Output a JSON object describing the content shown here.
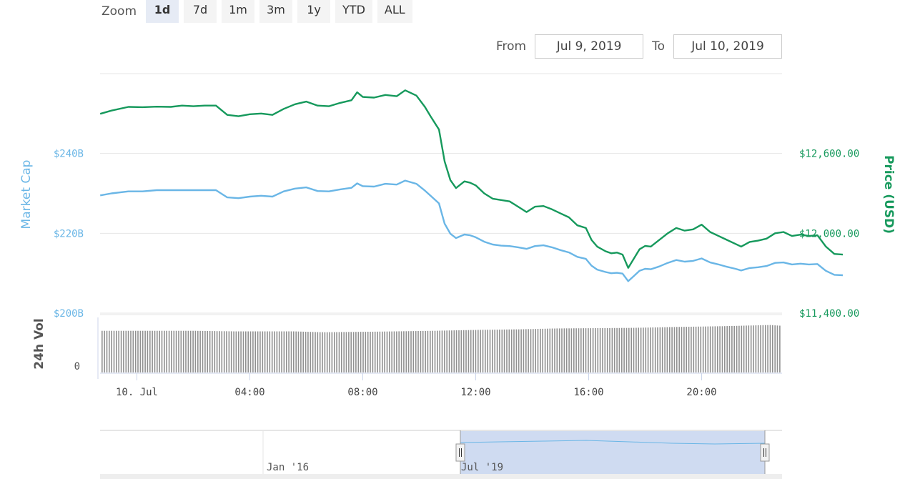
{
  "zoom": {
    "label": "Zoom",
    "buttons": [
      "1d",
      "7d",
      "1m",
      "3m",
      "1y",
      "YTD",
      "ALL"
    ],
    "active": "1d"
  },
  "range": {
    "from_label": "From",
    "from_value": "Jul 9, 2019",
    "to_label": "To",
    "to_value": "Jul 10, 2019"
  },
  "colors": {
    "market_cap": "#6ab6e6",
    "price": "#16995c",
    "volume": "#909090",
    "navigator_fill": "#c7d5ee",
    "grid": "#e6e6e6"
  },
  "chart_data": {
    "type": "line",
    "x_unit": "hours",
    "x_start": -1.3,
    "x_end": 22.8,
    "x_ticks": [
      {
        "x": 0,
        "label": "10. Jul"
      },
      {
        "x": 4,
        "label": "04:00"
      },
      {
        "x": 8,
        "label": "08:00"
      },
      {
        "x": 12,
        "label": "12:00"
      },
      {
        "x": 16,
        "label": "16:00"
      },
      {
        "x": 20,
        "label": "20:00"
      }
    ],
    "left_axis": {
      "label": "Market Cap",
      "ylim": [
        200,
        260
      ],
      "ticks": [
        {
          "v": 200,
          "label": "$200B"
        },
        {
          "v": 220,
          "label": "$220B"
        },
        {
          "v": 240,
          "label": "$240B"
        }
      ]
    },
    "right_axis": {
      "label": "Price (USD)",
      "ylim": [
        11400,
        13200
      ],
      "ticks": [
        {
          "v": 11400,
          "label": "$11,400.00"
        },
        {
          "v": 12000,
          "label": "$12,000.00"
        },
        {
          "v": 12600,
          "label": "$12,600.00"
        }
      ]
    },
    "volume_axis": {
      "label": "24h Vol",
      "ticks": [
        {
          "v": 0,
          "label": "0"
        }
      ]
    },
    "series": [
      {
        "name": "Price (USD)",
        "axis": "right",
        "points": [
          [
            -1.3,
            12898
          ],
          [
            -0.9,
            12922
          ],
          [
            -0.3,
            12950
          ],
          [
            0.2,
            12948
          ],
          [
            0.7,
            12952
          ],
          [
            1.2,
            12950
          ],
          [
            1.6,
            12960
          ],
          [
            2.0,
            12955
          ],
          [
            2.4,
            12960
          ],
          [
            2.8,
            12960
          ],
          [
            3.2,
            12890
          ],
          [
            3.6,
            12880
          ],
          [
            4.0,
            12895
          ],
          [
            4.4,
            12900
          ],
          [
            4.8,
            12890
          ],
          [
            5.2,
            12935
          ],
          [
            5.6,
            12970
          ],
          [
            6.0,
            12990
          ],
          [
            6.4,
            12960
          ],
          [
            6.8,
            12955
          ],
          [
            7.2,
            12980
          ],
          [
            7.6,
            13000
          ],
          [
            7.8,
            13060
          ],
          [
            8.0,
            13025
          ],
          [
            8.4,
            13020
          ],
          [
            8.8,
            13040
          ],
          [
            9.2,
            13030
          ],
          [
            9.5,
            13075
          ],
          [
            9.9,
            13035
          ],
          [
            10.2,
            12950
          ],
          [
            10.4,
            12880
          ],
          [
            10.7,
            12780
          ],
          [
            10.9,
            12540
          ],
          [
            11.1,
            12400
          ],
          [
            11.3,
            12340
          ],
          [
            11.6,
            12390
          ],
          [
            11.8,
            12380
          ],
          [
            12.0,
            12360
          ],
          [
            12.3,
            12300
          ],
          [
            12.6,
            12260
          ],
          [
            12.9,
            12250
          ],
          [
            13.2,
            12240
          ],
          [
            13.5,
            12200
          ],
          [
            13.8,
            12160
          ],
          [
            14.1,
            12200
          ],
          [
            14.4,
            12205
          ],
          [
            14.7,
            12180
          ],
          [
            15.0,
            12150
          ],
          [
            15.3,
            12120
          ],
          [
            15.6,
            12060
          ],
          [
            15.9,
            12040
          ],
          [
            16.1,
            11950
          ],
          [
            16.3,
            11900
          ],
          [
            16.6,
            11865
          ],
          [
            16.8,
            11850
          ],
          [
            17.0,
            11855
          ],
          [
            17.2,
            11840
          ],
          [
            17.4,
            11740
          ],
          [
            17.6,
            11810
          ],
          [
            17.8,
            11880
          ],
          [
            18.0,
            11905
          ],
          [
            18.2,
            11900
          ],
          [
            18.5,
            11950
          ],
          [
            18.8,
            12000
          ],
          [
            19.1,
            12040
          ],
          [
            19.4,
            12020
          ],
          [
            19.7,
            12030
          ],
          [
            20.0,
            12065
          ],
          [
            20.3,
            12010
          ],
          [
            20.6,
            11980
          ],
          [
            20.9,
            11950
          ],
          [
            21.2,
            11920
          ],
          [
            21.4,
            11900
          ],
          [
            21.7,
            11935
          ],
          [
            22.0,
            11945
          ],
          [
            22.3,
            11960
          ],
          [
            22.6,
            12000
          ],
          [
            22.9,
            12010
          ],
          [
            23.2,
            11980
          ],
          [
            23.5,
            11990
          ],
          [
            23.8,
            11980
          ],
          [
            24.1,
            11985
          ],
          [
            24.4,
            11900
          ],
          [
            24.7,
            11845
          ],
          [
            25.0,
            11840
          ]
        ]
      },
      {
        "name": "Market Cap",
        "axis": "left",
        "points": [
          [
            -1.3,
            229.5
          ],
          [
            -0.9,
            230.0
          ],
          [
            -0.3,
            230.5
          ],
          [
            0.2,
            230.5
          ],
          [
            0.7,
            230.8
          ],
          [
            1.2,
            230.8
          ],
          [
            1.6,
            230.8
          ],
          [
            2.0,
            230.8
          ],
          [
            2.4,
            230.8
          ],
          [
            2.8,
            230.8
          ],
          [
            3.2,
            229.0
          ],
          [
            3.6,
            228.8
          ],
          [
            4.0,
            229.2
          ],
          [
            4.4,
            229.4
          ],
          [
            4.8,
            229.2
          ],
          [
            5.2,
            230.5
          ],
          [
            5.6,
            231.2
          ],
          [
            6.0,
            231.5
          ],
          [
            6.4,
            230.6
          ],
          [
            6.8,
            230.5
          ],
          [
            7.2,
            231.0
          ],
          [
            7.6,
            231.4
          ],
          [
            7.8,
            232.5
          ],
          [
            8.0,
            231.8
          ],
          [
            8.4,
            231.7
          ],
          [
            8.8,
            232.4
          ],
          [
            9.2,
            232.2
          ],
          [
            9.5,
            233.2
          ],
          [
            9.9,
            232.4
          ],
          [
            10.2,
            230.7
          ],
          [
            10.4,
            229.4
          ],
          [
            10.7,
            227.5
          ],
          [
            10.9,
            222.4
          ],
          [
            11.1,
            219.9
          ],
          [
            11.3,
            218.8
          ],
          [
            11.6,
            219.7
          ],
          [
            11.8,
            219.5
          ],
          [
            12.0,
            219.0
          ],
          [
            12.3,
            217.9
          ],
          [
            12.6,
            217.2
          ],
          [
            12.9,
            216.9
          ],
          [
            13.2,
            216.8
          ],
          [
            13.5,
            216.5
          ],
          [
            13.8,
            216.1
          ],
          [
            14.1,
            216.8
          ],
          [
            14.4,
            217.0
          ],
          [
            14.7,
            216.5
          ],
          [
            15.0,
            215.8
          ],
          [
            15.3,
            215.2
          ],
          [
            15.6,
            214.1
          ],
          [
            15.9,
            213.6
          ],
          [
            16.1,
            211.9
          ],
          [
            16.3,
            210.9
          ],
          [
            16.6,
            210.3
          ],
          [
            16.8,
            210.0
          ],
          [
            17.0,
            210.1
          ],
          [
            17.2,
            209.9
          ],
          [
            17.4,
            208.0
          ],
          [
            17.6,
            209.3
          ],
          [
            17.8,
            210.6
          ],
          [
            18.0,
            211.1
          ],
          [
            18.2,
            211.0
          ],
          [
            18.5,
            211.7
          ],
          [
            18.8,
            212.6
          ],
          [
            19.1,
            213.3
          ],
          [
            19.4,
            212.9
          ],
          [
            19.7,
            213.1
          ],
          [
            20.0,
            213.7
          ],
          [
            20.3,
            212.7
          ],
          [
            20.6,
            212.2
          ],
          [
            20.9,
            211.6
          ],
          [
            21.2,
            211.1
          ],
          [
            21.4,
            210.7
          ],
          [
            21.7,
            211.3
          ],
          [
            22.0,
            211.5
          ],
          [
            22.3,
            211.8
          ],
          [
            22.6,
            212.6
          ],
          [
            22.9,
            212.7
          ],
          [
            23.2,
            212.2
          ],
          [
            23.5,
            212.4
          ],
          [
            23.8,
            212.2
          ],
          [
            24.1,
            212.3
          ],
          [
            24.4,
            210.6
          ],
          [
            24.7,
            209.6
          ],
          [
            25.0,
            209.5
          ]
        ]
      }
    ],
    "volume_profile": [
      [
        -1.3,
        0.72
      ],
      [
        2,
        0.72
      ],
      [
        3.4,
        0.71
      ],
      [
        5.5,
        0.71
      ],
      [
        6.6,
        0.695
      ],
      [
        8.5,
        0.705
      ],
      [
        10.5,
        0.72
      ],
      [
        12.0,
        0.735
      ],
      [
        13.5,
        0.745
      ],
      [
        14.8,
        0.76
      ],
      [
        17.5,
        0.77
      ],
      [
        19.0,
        0.785
      ],
      [
        20.8,
        0.8
      ],
      [
        22.4,
        0.82
      ],
      [
        23.0,
        0.8
      ],
      [
        24.5,
        0.78
      ],
      [
        25.0,
        0.78
      ]
    ],
    "navigator": {
      "labels": [
        "Jan '16",
        "Jul '19"
      ]
    }
  }
}
